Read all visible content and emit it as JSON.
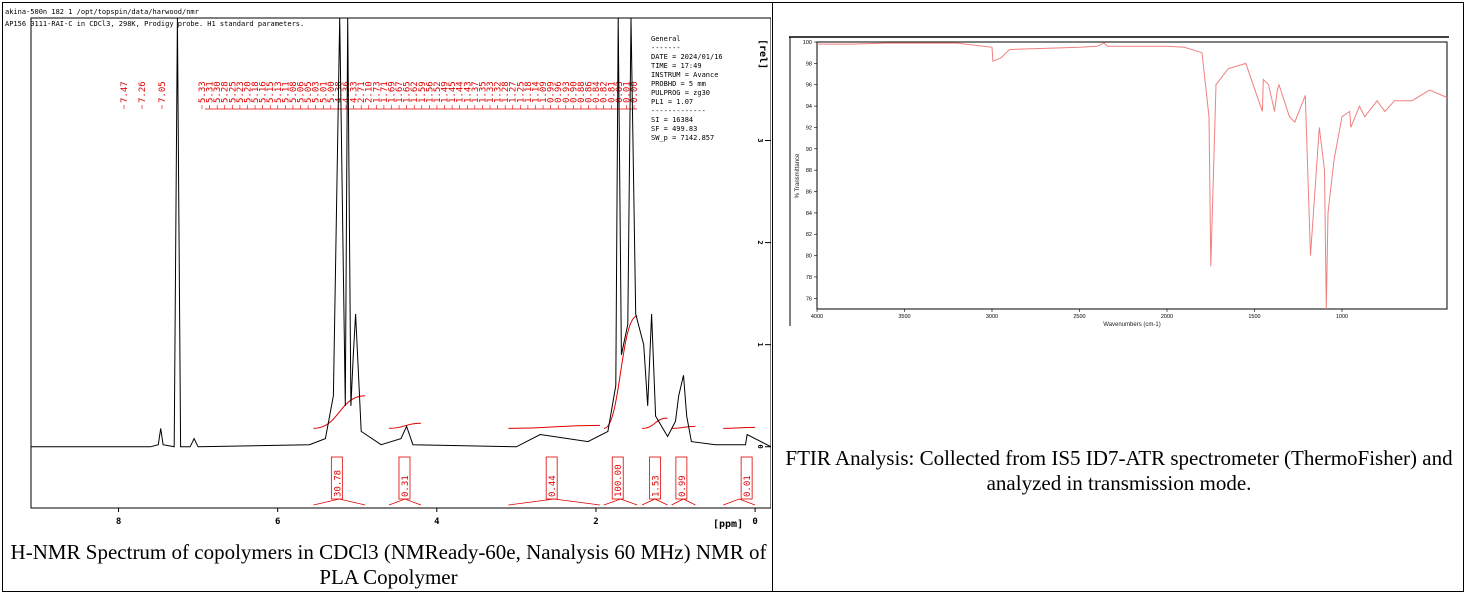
{
  "nmr": {
    "header_line1": "akina-500n  182  1  /opt/topspin/data/harwood/nmr",
    "header_line2": "AP156 0111-RAI-C in CDCl3, 298K, Prodigy probe.  H1 standard parameters.",
    "right_axis_unit": "[rel]",
    "x_unit": "[ppm]",
    "params": {
      "title": "General",
      "dashes": "-------",
      "lines": [
        "DATE = 2024/01/16",
        "TIME = 17:49",
        "INSTRUM = Avance",
        "PROBHD = 5 mm",
        "PULPROG = zg30",
        "PL1 = 1.07",
        "-------------",
        "SI =  16384",
        "SF =  499.83",
        "SW_p =  7142.857"
      ]
    },
    "peak_labels": [
      "7.47",
      "7.26",
      "7.05",
      "5.33",
      "5.31",
      "5.30",
      "5.28",
      "5.25",
      "5.23",
      "5.20",
      "5.18",
      "5.16",
      "5.15",
      "5.13",
      "5.11",
      "5.08",
      "5.06",
      "5.05",
      "5.03",
      "5.01",
      "5.00",
      "4.38",
      "4.36",
      "4.33",
      "2.71",
      "2.10",
      "1.73",
      "1.71",
      "1.69",
      "1.67",
      "1.65",
      "1.62",
      "1.59",
      "1.56",
      "1.52",
      "1.49",
      "1.45",
      "1.44",
      "1.43",
      "1.37",
      "1.35",
      "1.33",
      "1.32",
      "1.28",
      "1.27",
      "1.25",
      "1.18",
      "1.14",
      "1.09",
      "0.99",
      "0.96",
      "0.93",
      "0.90",
      "0.88",
      "0.86",
      "0.84",
      "0.82",
      "0.81",
      "0.03",
      "0.01",
      "0.00"
    ],
    "integrals": [
      "30.78",
      "0.31",
      "0.44",
      "100.00",
      "1.53",
      "0.99",
      "0.01"
    ],
    "caption": "H-NMR Spectrum of copolymers in CDCl3 (NMReady-60e, Nanalysis 60 MHz) NMR of PLA Copolymer"
  },
  "ftir": {
    "caption": "FTIR Analysis: Collected from IS5 ID7-ATR spectrometer (ThermoFisher) and analyzed in transmission mode."
  },
  "chart_data": [
    {
      "type": "line",
      "title": "",
      "xlabel": "",
      "x_unit": "[ppm]",
      "ylabel": "",
      "y_unit": "[rel]",
      "xlim": [
        9.1,
        -0.2
      ],
      "ylim": [
        -0.6,
        4.2
      ],
      "x_ticks": [
        8,
        6,
        4,
        2,
        0
      ],
      "y_ticks": [
        0,
        1,
        2,
        3
      ],
      "series": [
        {
          "name": "",
          "x": [
            9.1,
            7.6,
            7.5,
            7.47,
            7.44,
            7.3,
            7.26,
            7.22,
            7.1,
            7.05,
            7.0,
            5.6,
            5.4,
            5.3,
            5.22,
            5.15,
            5.12,
            5.08,
            5.05,
            5.02,
            4.95,
            4.7,
            4.45,
            4.38,
            4.3,
            3.0,
            2.7,
            2.1,
            1.85,
            1.75,
            1.72,
            1.68,
            1.6,
            1.56,
            1.5,
            1.4,
            1.35,
            1.3,
            1.25,
            1.1,
            1.0,
            0.96,
            0.9,
            0.86,
            0.8,
            0.5,
            0.12,
            0.1,
            -0.2
          ],
          "y": [
            0.0,
            0.0,
            0.02,
            0.18,
            0.02,
            0.0,
            4.3,
            0.0,
            0.0,
            0.08,
            0.0,
            0.02,
            0.08,
            0.5,
            4.3,
            0.4,
            4.3,
            0.4,
            0.9,
            1.3,
            0.15,
            0.02,
            0.08,
            0.2,
            0.02,
            0.0,
            0.12,
            0.05,
            0.15,
            0.6,
            4.3,
            0.9,
            1.2,
            4.3,
            1.3,
            1.0,
            0.4,
            1.3,
            0.3,
            0.1,
            0.25,
            0.5,
            0.7,
            0.3,
            0.05,
            0.02,
            0.02,
            0.12,
            0.0
          ]
        }
      ]
    },
    {
      "type": "line",
      "title": "",
      "xlabel": "Wavenumbers (cm-1)",
      "ylabel": "% Transmittance",
      "xlim": [
        4000,
        400
      ],
      "ylim": [
        75,
        100
      ],
      "x_ticks": [
        4000,
        3500,
        3000,
        2500,
        2000,
        1500,
        1000
      ],
      "y_ticks": [
        76,
        78,
        80,
        82,
        84,
        86,
        88,
        90,
        92,
        94,
        96,
        98,
        100
      ],
      "series": [
        {
          "name": "",
          "x": [
            4000,
            3800,
            3600,
            3400,
            3200,
            3000,
            2995,
            2950,
            2900,
            2700,
            2500,
            2400,
            2360,
            2340,
            2200,
            2000,
            1900,
            1800,
            1760,
            1750,
            1720,
            1650,
            1550,
            1455,
            1450,
            1420,
            1385,
            1370,
            1360,
            1300,
            1270,
            1210,
            1180,
            1130,
            1100,
            1090,
            1080,
            1045,
            1000,
            956,
            950,
            900,
            870,
            800,
            755,
            700,
            600,
            500,
            400
          ],
          "y": [
            99.8,
            99.8,
            99.9,
            99.9,
            99.9,
            99.5,
            98.2,
            98.5,
            99.3,
            99.4,
            99.5,
            99.6,
            99.9,
            99.6,
            99.6,
            99.6,
            99.5,
            99.0,
            93.0,
            79.0,
            96.0,
            97.5,
            98.0,
            93.5,
            96.5,
            96.0,
            93.5,
            95.5,
            96.0,
            93.0,
            92.5,
            95.0,
            80.0,
            92.0,
            88.0,
            75.0,
            84.0,
            89.0,
            93.0,
            93.5,
            92.0,
            94.0,
            93.0,
            94.5,
            93.5,
            94.5,
            94.5,
            95.5,
            94.8
          ]
        }
      ]
    }
  ]
}
